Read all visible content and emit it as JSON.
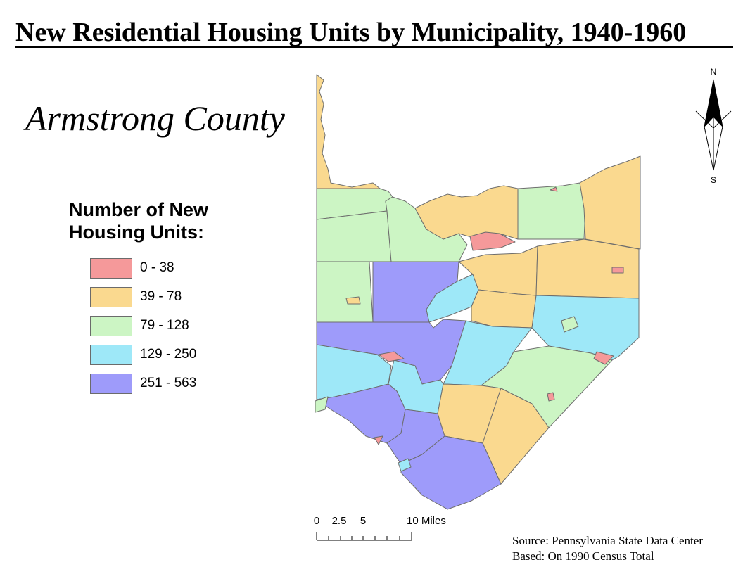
{
  "title": "New Residential Housing Units by Municipality, 1940-1960",
  "county_label": "Armstrong County",
  "legend": {
    "title_line1": "Number of New",
    "title_line2": "Housing Units:",
    "classes": [
      {
        "label": "0 - 38",
        "color": "#f5999a"
      },
      {
        "label": "39 - 78",
        "color": "#fad98f"
      },
      {
        "label": "79 - 128",
        "color": "#ccf5c4"
      },
      {
        "label": "129 - 250",
        "color": "#9ee8f8"
      },
      {
        "label": "251 - 563",
        "color": "#9e9bfa"
      }
    ]
  },
  "north_arrow": {
    "top_letter": "N",
    "bottom_letter": "S",
    "icon": "north-arrow-icon"
  },
  "scale_bar": {
    "labels": [
      "0",
      "2.5",
      "5",
      "10 Miles"
    ],
    "units": "Miles"
  },
  "source": {
    "line1": "Source: Pennsylvania State Data Center",
    "line2": "Based: On 1990 Census Total"
  },
  "municipality_classes": {
    "class_1": 0,
    "class_2": 1,
    "class_3": 2,
    "class_4": 3,
    "class_5": 4
  }
}
